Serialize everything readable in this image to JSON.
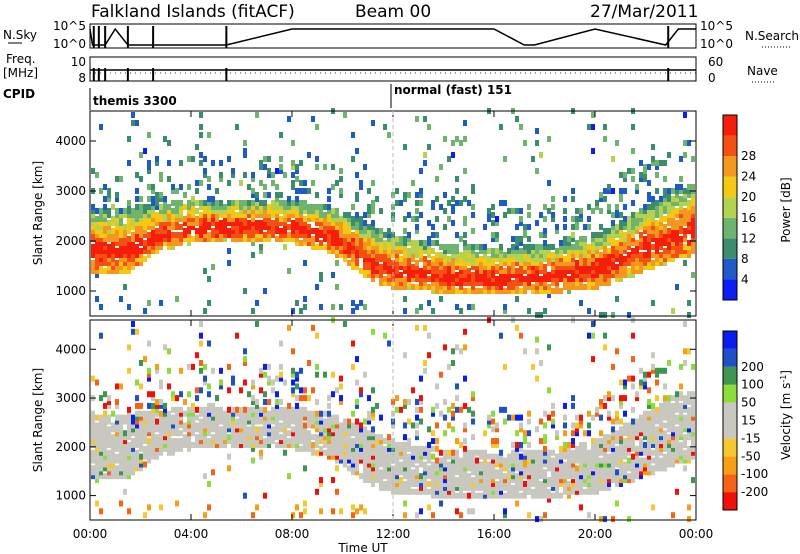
{
  "header": {
    "station": "Falkland Islands (fitACF)",
    "beam": "Beam 00",
    "date": "27/Mar/2011"
  },
  "strip_labels": {
    "nsky": "N.Sky",
    "nsky_hi": "10^5",
    "nsky_lo": "10^0",
    "nsearch": "N.Search",
    "freq_line1": "Freq.",
    "freq_line2": "[MHz]",
    "freq_hi": "10",
    "freq_lo": "8",
    "nave": "Nave",
    "nave_hi": "60",
    "nave_lo": "0",
    "cpid": "CPID",
    "cpid1": "themis 3300",
    "cpid2": "normal (fast) 151"
  },
  "colors": {
    "power": [
      "#0a1ef5",
      "#1e5ac8",
      "#3c8c6e",
      "#6eb46e",
      "#b4d250",
      "#f5c814",
      "#f5961e",
      "#f55014",
      "#f51e0a"
    ],
    "velocity": [
      "#f0100a",
      "#f56414",
      "#f5a014",
      "#f5c832",
      "#c8c8c0",
      "#c8c8c0",
      "#8cdc3c",
      "#3c9650",
      "#1e50c8",
      "#0a1ef0"
    ],
    "grey": "#c8c8c0"
  },
  "chart_data": [
    {
      "type": "line",
      "title": "N.Sky / N.Search",
      "series": [
        {
          "name": "N.Sky",
          "x": [
            0,
            0.1,
            0.3,
            0.6,
            1.0,
            1.5,
            2.5,
            5.4,
            8.0,
            12.0,
            16.0,
            17.2,
            17.6,
            20.0,
            22.8,
            23.3,
            24.0
          ],
          "values": [
            100000,
            1,
            1,
            1,
            100000,
            1,
            1,
            1,
            100000,
            100000,
            100000,
            1,
            1,
            100000,
            1,
            100000,
            100000
          ]
        }
      ],
      "xlim": [
        0,
        24
      ],
      "ylabel": "N.Sky",
      "y_ticks": [
        "10^0",
        "10^5"
      ]
    },
    {
      "type": "line",
      "title": "Freq. / Nave",
      "series": [
        {
          "name": "Freq. [MHz]",
          "x": [
            0,
            12,
            24
          ],
          "values": [
            10,
            10,
            10
          ]
        },
        {
          "name": "Nave",
          "x": [
            0,
            12,
            24
          ],
          "values": [
            30,
            30,
            30
          ]
        }
      ],
      "xlim": [
        0,
        24
      ],
      "y_ticks_left": [
        "8",
        "10"
      ],
      "y_ticks_right": [
        "0",
        "60"
      ]
    },
    {
      "type": "heatmap",
      "title": "Power",
      "xlabel": "",
      "ylabel": "Slant Range [km]",
      "colorbar_label": "Power [dB]",
      "colorbar_ticks": [
        "4",
        "8",
        "12",
        "16",
        "20",
        "24",
        "28"
      ],
      "clim": [
        0,
        32
      ],
      "xlim": [
        0,
        24
      ],
      "ylim": [
        500,
        4600
      ],
      "y_ticks": [
        "1000",
        "2000",
        "3000",
        "4000"
      ],
      "main_echo_band": {
        "x": [
          0,
          1.5,
          2.5,
          4,
          6,
          8,
          9.5,
          10.5,
          11.2,
          12,
          13,
          14,
          16,
          18,
          20,
          22,
          23,
          24
        ],
        "lower_km": [
          1350,
          1350,
          1750,
          1950,
          2000,
          1950,
          1750,
          1400,
          1150,
          1050,
          1000,
          950,
          900,
          950,
          1050,
          1400,
          1600,
          1750
        ],
        "upper_km": [
          2600,
          2650,
          2700,
          2800,
          2800,
          2800,
          2650,
          2450,
          2250,
          2100,
          2000,
          1900,
          1850,
          1900,
          2100,
          2700,
          3000,
          3100
        ]
      },
      "cpid_change_hour": 12.0
    },
    {
      "type": "heatmap",
      "title": "Velocity",
      "xlabel": "Time UT",
      "ylabel": "Slant Range [km]",
      "colorbar_label": "Velocity [m s^-1]",
      "colorbar_ticks": [
        "-200",
        "-100",
        "-50",
        "-15",
        "15",
        "50",
        "100",
        "200"
      ],
      "clim": [
        -250,
        250
      ],
      "xlim": [
        0,
        24
      ],
      "ylim": [
        500,
        4600
      ],
      "x_ticks": [
        "00:00",
        "04:00",
        "08:00",
        "12:00",
        "16:00",
        "20:00",
        "00:00"
      ],
      "y_ticks": [
        "1000",
        "2000",
        "3000",
        "4000"
      ]
    }
  ]
}
